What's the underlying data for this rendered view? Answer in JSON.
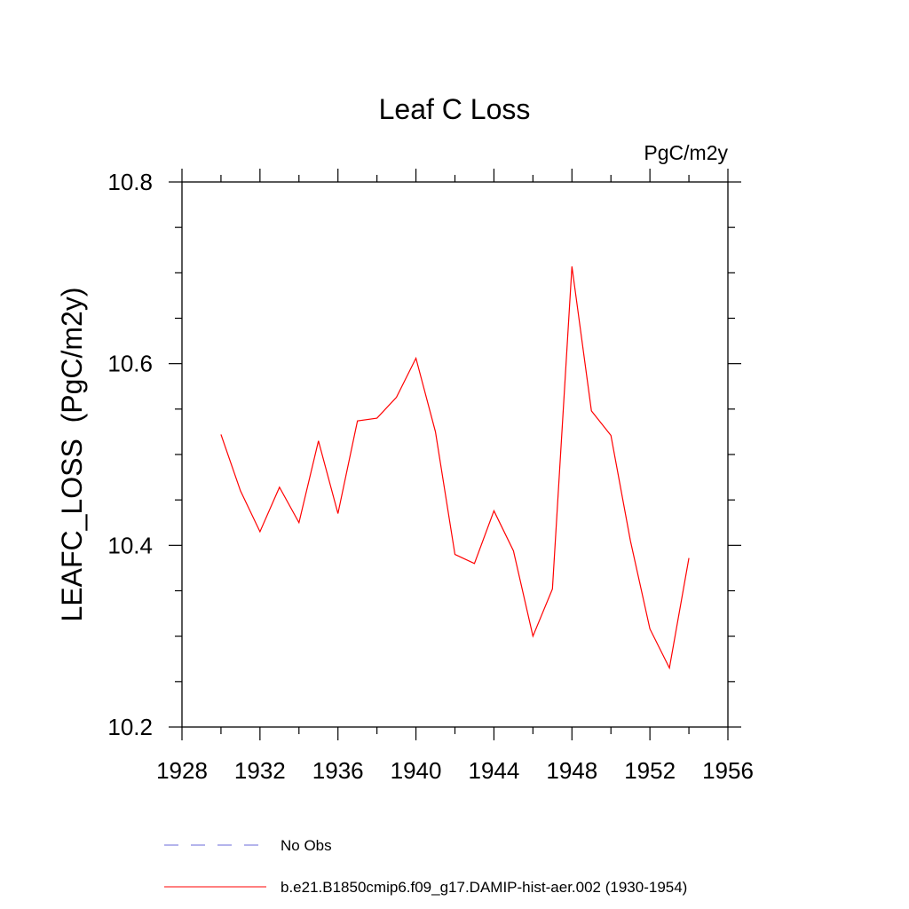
{
  "chart_data": {
    "type": "line",
    "title": "Leaf C Loss",
    "units_label": "PgC/m2y",
    "ylabel": "LEAFC_LOSS  (PgC/m2y)",
    "xlabel": "",
    "xlim": [
      1928,
      1956
    ],
    "ylim": [
      10.2,
      10.8
    ],
    "x_ticks": [
      1928,
      1932,
      1936,
      1940,
      1944,
      1948,
      1952,
      1956
    ],
    "y_ticks": [
      10.2,
      10.4,
      10.6,
      10.8
    ],
    "x_minor_step": 2,
    "y_minor_step": 0.05,
    "grid": false,
    "legend_position": "bottom",
    "series": [
      {
        "name": "b.e21.B1850cmip6.f09_g17.DAMIP-hist-aer.002 (1930-1954)",
        "color": "#ff0000",
        "dash": "solid",
        "x": [
          1930,
          1931,
          1932,
          1933,
          1934,
          1935,
          1936,
          1937,
          1938,
          1939,
          1940,
          1941,
          1942,
          1943,
          1944,
          1945,
          1946,
          1947,
          1948,
          1949,
          1950,
          1951,
          1952,
          1953,
          1954
        ],
        "values": [
          10.522,
          10.46,
          10.415,
          10.464,
          10.425,
          10.515,
          10.435,
          10.537,
          10.54,
          10.563,
          10.606,
          10.525,
          10.39,
          10.38,
          10.438,
          10.394,
          10.3,
          10.352,
          10.707,
          10.548,
          10.521,
          10.405,
          10.308,
          10.265,
          10.386
        ]
      }
    ],
    "legend": [
      {
        "label": "No Obs",
        "color": "#6a6ad8",
        "dash": "dashed"
      },
      {
        "label": "b.e21.B1850cmip6.f09_g17.DAMIP-hist-aer.002 (1930-1954)",
        "color": "#ff0000",
        "dash": "solid"
      }
    ]
  }
}
